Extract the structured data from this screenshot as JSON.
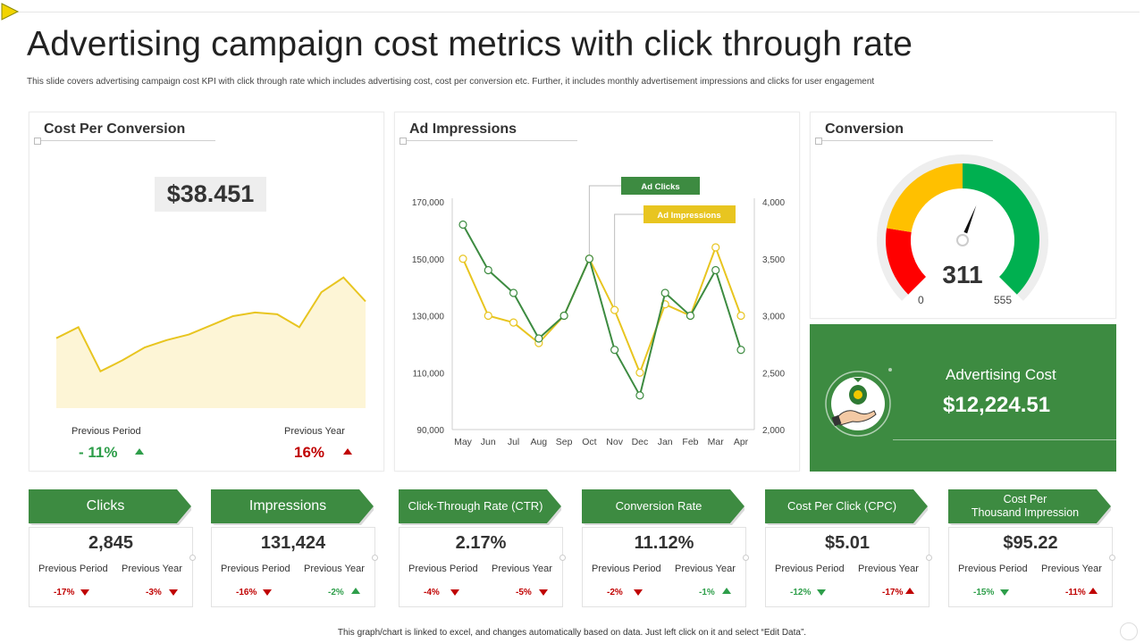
{
  "title": "Advertising campaign cost metrics with click through rate",
  "subtitle": "This slide covers advertising campaign cost KPI  with click through rate which includes advertising cost, cost per conversion etc. Further, it includes monthly advertisement impressions and clicks for user engagement",
  "colors": {
    "green": "#3d8b41",
    "yellow": "#e8c520",
    "red": "#c00000",
    "up_green": "#2e9e4a"
  },
  "cost_per_conversion": {
    "title": "Cost Per Conversion",
    "value": "$38.451",
    "previous_period_label": "Previous Period",
    "previous_period_value": "- 11%",
    "previous_year_label": "Previous Year",
    "previous_year_value": "16%"
  },
  "ad_impressions": {
    "title": "Ad Impressions"
  },
  "conversion": {
    "title": "Conversion",
    "value": "311",
    "min_label": "0",
    "max_label": "555",
    "value_number": 311,
    "max_number": 555
  },
  "advertising_cost": {
    "label": "Advertising Cost",
    "value": "$12,224.51",
    "icon": "money-bag-hand-icon"
  },
  "kpis": [
    {
      "label": "Clicks",
      "value": "2,845",
      "pp_label": "Previous Period",
      "py_label": "Previous Year",
      "pp": "-17%",
      "py": "-3%",
      "pp_dir": "down-red",
      "py_dir": "down-red"
    },
    {
      "label": "Impressions",
      "value": "131,424",
      "pp_label": "Previous Period",
      "py_label": "Previous Year",
      "pp": "-16%",
      "py": "-2%",
      "pp_dir": "down-red",
      "py_dir": "up-green"
    },
    {
      "label": "Click-Through  Rate (CTR)",
      "value": "2.17%",
      "pp_label": "Previous Period",
      "py_label": "Previous Year",
      "pp": "-4%",
      "py": "-5%",
      "pp_dir": "down-red",
      "py_dir": "down-red"
    },
    {
      "label": "Conversion  Rate",
      "value": "11.12%",
      "pp_label": "Previous Period",
      "py_label": "Previous Year",
      "pp": "-2%",
      "py": "-1%",
      "pp_dir": "down-red",
      "py_dir": "up-green"
    },
    {
      "label": "Cost Per Click (CPC)",
      "value": "$5.01",
      "pp_label": "Previous Period",
      "py_label": "Previous Year",
      "pp": "-12%",
      "py": "-17%",
      "pp_dir": "down-green",
      "py_dir": "up-red"
    },
    {
      "label": "Cost Per Thousand Impression",
      "label_line1": "Cost Per",
      "label_line2": "Thousand Impression",
      "value": "$95.22",
      "pp_label": "Previous Period",
      "py_label": "Previous Year",
      "pp": "-15%",
      "py": "-11%",
      "pp_dir": "down-green",
      "py_dir": "up-red"
    }
  ],
  "footer": "This graph/chart is linked to excel, and changes automatically based on data. Just left click on it and select “Edit Data”.",
  "chart_data": [
    {
      "type": "area",
      "title": "Cost Per Conversion",
      "values": [
        38,
        44,
        20,
        26,
        33,
        37,
        40,
        45,
        50,
        52,
        51,
        44,
        63,
        71,
        58
      ],
      "ylim": [
        0,
        100
      ],
      "grid": false
    },
    {
      "type": "line",
      "title": "Ad Impressions",
      "categories": [
        "May",
        "Jun",
        "Jul",
        "Aug",
        "Sep",
        "Oct",
        "Nov",
        "Dec",
        "Jan",
        "Feb",
        "Mar",
        "Apr"
      ],
      "y_left_ticks": [
        "170,000",
        "150,000",
        "130,000",
        "110,000",
        "90,000"
      ],
      "y_left_range": [
        90000,
        170000
      ],
      "y_right_ticks": [
        "4,000",
        "3,500",
        "3,000",
        "2,500",
        "2,000"
      ],
      "y_right_range": [
        2000,
        4000
      ],
      "legend": [
        "Ad Clicks",
        "Ad Impressions"
      ],
      "series": [
        {
          "name": "Ad Clicks",
          "axis": "left",
          "color": "#3d8b41",
          "values": [
            162000,
            146000,
            138000,
            122000,
            130000,
            150000,
            118000,
            102000,
            138000,
            130000,
            146000,
            118000
          ]
        },
        {
          "name": "Ad Impressions",
          "axis": "right",
          "color": "#e8c520",
          "values": [
            3500,
            3000,
            2940,
            2760,
            3000,
            3500,
            3050,
            2500,
            3100,
            3000,
            3600,
            3000
          ]
        }
      ],
      "grid": false
    }
  ]
}
